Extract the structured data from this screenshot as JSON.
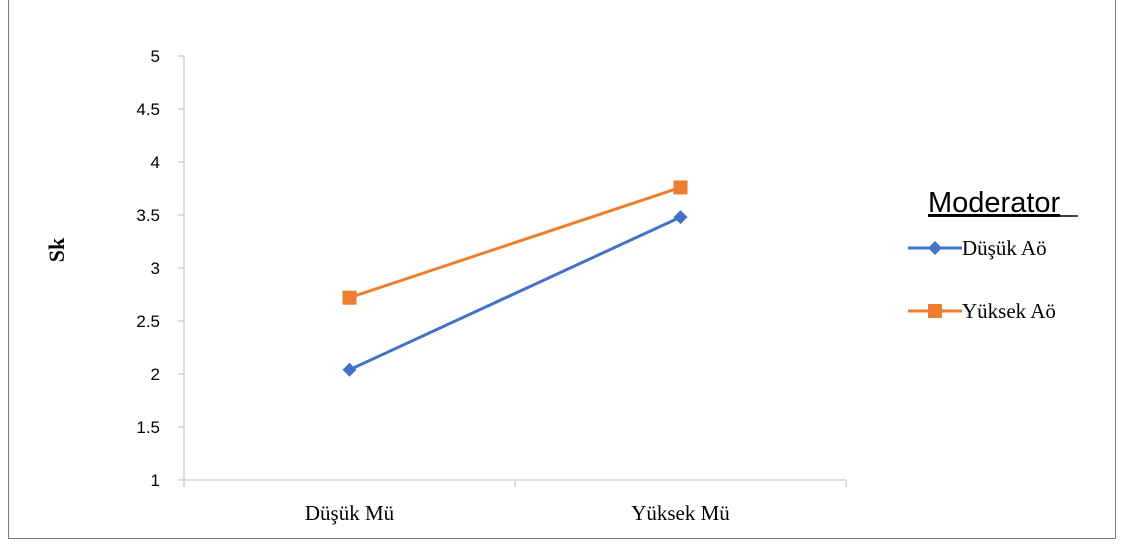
{
  "chart_data": {
    "type": "line",
    "categories": [
      "Düşük Mü",
      "Yüksek Mü"
    ],
    "series": [
      {
        "name": "Düşük Aö",
        "values": [
          2.04,
          3.48
        ],
        "color": "#4472c4",
        "marker": "diamond"
      },
      {
        "name": "Yüksek Aö",
        "values": [
          2.72,
          3.76
        ],
        "color": "#ed7d31",
        "marker": "square"
      }
    ],
    "title": "",
    "xlabel": "",
    "ylabel": "Sk",
    "ylim": [
      1,
      5
    ],
    "yticks": [
      "1",
      "1.5",
      "2",
      "2.5",
      "3",
      "3.5",
      "4",
      "4.5",
      "5"
    ],
    "grid": false,
    "legend": {
      "title": "Moderator",
      "position": "right"
    }
  }
}
